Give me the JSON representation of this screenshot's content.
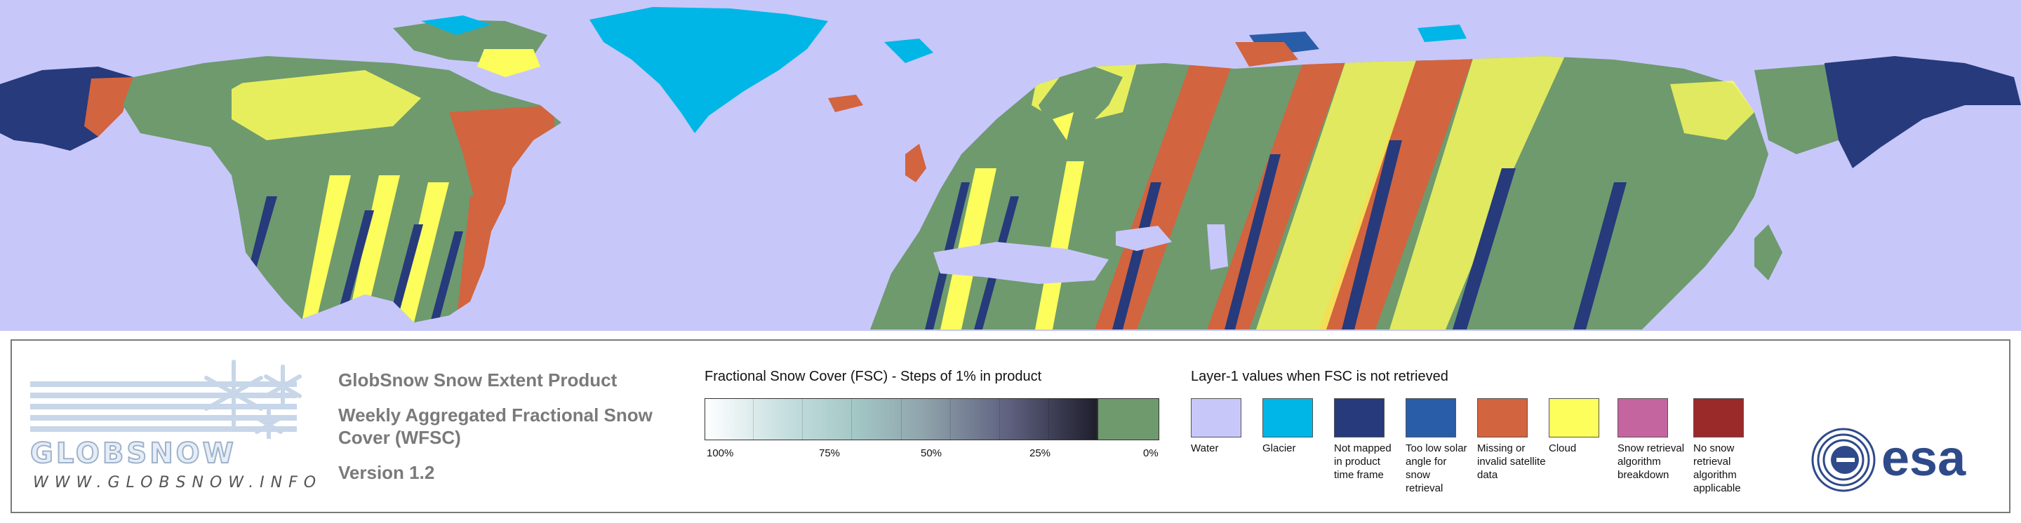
{
  "map": {
    "colors": {
      "water": "#c8c7fa",
      "glacier": "#00b6e6",
      "not_mapped": "#263a7c",
      "low_solar": "#2a5da8",
      "missing": "#d2643f",
      "cloud": "#fdfd5c",
      "breakdown": "#c465a0",
      "not_applicable": "#9a2a2a",
      "snow_free": "#6e9a6e",
      "snow": "#ffffff"
    }
  },
  "legend": {
    "logo": {
      "brand": "GLOBSNOW",
      "url": "WWW.GLOBSNOW.INFO",
      "icon": "snowflake-icon"
    },
    "product": {
      "title": "GlobSnow Snow Extent Product",
      "subtitle_line1": "Weekly Aggregated Fractional Snow",
      "subtitle_line2": "Cover (WFSC)",
      "version": "Version 1.2"
    },
    "fsc": {
      "title": "Fractional Snow Cover (FSC) - Steps of 1% in product",
      "ticks": [
        "100%",
        "75%",
        "50%",
        "25%",
        "0%"
      ]
    },
    "layer1": {
      "title": "Layer-1 values when FSC is not retrieved",
      "categories": [
        {
          "label": "Water",
          "color": "#c8c7fa"
        },
        {
          "label": "Glacier",
          "color": "#00b6e6"
        },
        {
          "label": "Not mapped in product time frame",
          "color": "#263a7c"
        },
        {
          "label": "Too low solar angle for snow retrieval",
          "color": "#2a5da8"
        },
        {
          "label": "Missing or invalid satellite data",
          "color": "#d2643f"
        },
        {
          "label": "Cloud",
          "color": "#fdfd5c"
        },
        {
          "label": "Snow retrieval algorithm breakdown",
          "color": "#c465a0"
        },
        {
          "label": "No snow retrieval algorithm applicable",
          "color": "#9a2a2a"
        }
      ]
    },
    "esa": {
      "text": "esa",
      "icon": "esa-logo-icon"
    }
  }
}
